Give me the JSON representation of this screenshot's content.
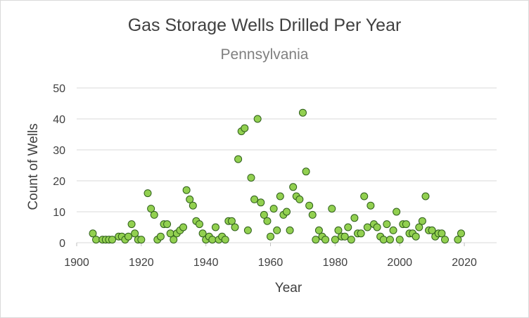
{
  "chart_data": {
    "type": "scatter",
    "title": "Gas Storage Wells Drilled Per Year",
    "subtitle": "Pennsylvania",
    "xlabel": "Year",
    "ylabel": "Count of Wells",
    "xlim": [
      1900,
      2030
    ],
    "ylim": [
      0,
      50
    ],
    "xticks": [
      1900,
      1920,
      1940,
      1960,
      1980,
      2000,
      2020
    ],
    "yticks": [
      0,
      10,
      20,
      30,
      40,
      50
    ],
    "grid": true,
    "legend": "none",
    "marker_fill": "#92D050",
    "marker_edge": "#2E5E1A",
    "grid_color": "#d9d9d9",
    "points": [
      [
        1905,
        3
      ],
      [
        1906,
        1
      ],
      [
        1908,
        1
      ],
      [
        1909,
        1
      ],
      [
        1910,
        1
      ],
      [
        1911,
        1
      ],
      [
        1913,
        2
      ],
      [
        1914,
        2
      ],
      [
        1915,
        1
      ],
      [
        1916,
        2
      ],
      [
        1917,
        6
      ],
      [
        1918,
        3
      ],
      [
        1919,
        1
      ],
      [
        1920,
        1
      ],
      [
        1922,
        16
      ],
      [
        1923,
        11
      ],
      [
        1924,
        9
      ],
      [
        1925,
        1
      ],
      [
        1926,
        2
      ],
      [
        1927,
        6
      ],
      [
        1928,
        6
      ],
      [
        1929,
        3
      ],
      [
        1930,
        1
      ],
      [
        1931,
        3
      ],
      [
        1932,
        4
      ],
      [
        1933,
        5
      ],
      [
        1934,
        17
      ],
      [
        1935,
        14
      ],
      [
        1936,
        12
      ],
      [
        1937,
        7
      ],
      [
        1938,
        6
      ],
      [
        1939,
        3
      ],
      [
        1940,
        1
      ],
      [
        1941,
        2
      ],
      [
        1942,
        1
      ],
      [
        1943,
        5
      ],
      [
        1944,
        1
      ],
      [
        1945,
        2
      ],
      [
        1946,
        1
      ],
      [
        1947,
        7
      ],
      [
        1948,
        7
      ],
      [
        1949,
        5
      ],
      [
        1950,
        27
      ],
      [
        1951,
        36
      ],
      [
        1952,
        37
      ],
      [
        1953,
        4
      ],
      [
        1954,
        21
      ],
      [
        1955,
        14
      ],
      [
        1956,
        40
      ],
      [
        1957,
        13
      ],
      [
        1958,
        9
      ],
      [
        1959,
        7
      ],
      [
        1960,
        2
      ],
      [
        1961,
        11
      ],
      [
        1962,
        4
      ],
      [
        1963,
        15
      ],
      [
        1964,
        9
      ],
      [
        1965,
        10
      ],
      [
        1966,
        4
      ],
      [
        1967,
        18
      ],
      [
        1968,
        15
      ],
      [
        1969,
        14
      ],
      [
        1970,
        42
      ],
      [
        1971,
        23
      ],
      [
        1972,
        12
      ],
      [
        1973,
        9
      ],
      [
        1974,
        1
      ],
      [
        1975,
        4
      ],
      [
        1976,
        2
      ],
      [
        1977,
        1
      ],
      [
        1979,
        11
      ],
      [
        1980,
        1
      ],
      [
        1981,
        4
      ],
      [
        1982,
        2
      ],
      [
        1983,
        2
      ],
      [
        1984,
        5
      ],
      [
        1985,
        1
      ],
      [
        1986,
        8
      ],
      [
        1987,
        3
      ],
      [
        1988,
        3
      ],
      [
        1989,
        15
      ],
      [
        1990,
        5
      ],
      [
        1991,
        12
      ],
      [
        1992,
        6
      ],
      [
        1993,
        5
      ],
      [
        1994,
        2
      ],
      [
        1995,
        1
      ],
      [
        1996,
        6
      ],
      [
        1997,
        1
      ],
      [
        1998,
        4
      ],
      [
        1999,
        10
      ],
      [
        2000,
        1
      ],
      [
        2001,
        6
      ],
      [
        2002,
        6
      ],
      [
        2003,
        3
      ],
      [
        2004,
        3
      ],
      [
        2005,
        2
      ],
      [
        2006,
        5
      ],
      [
        2007,
        7
      ],
      [
        2008,
        15
      ],
      [
        2009,
        4
      ],
      [
        2010,
        4
      ],
      [
        2011,
        2
      ],
      [
        2012,
        3
      ],
      [
        2013,
        3
      ],
      [
        2014,
        1
      ],
      [
        2018,
        1
      ],
      [
        2019,
        3
      ]
    ]
  }
}
